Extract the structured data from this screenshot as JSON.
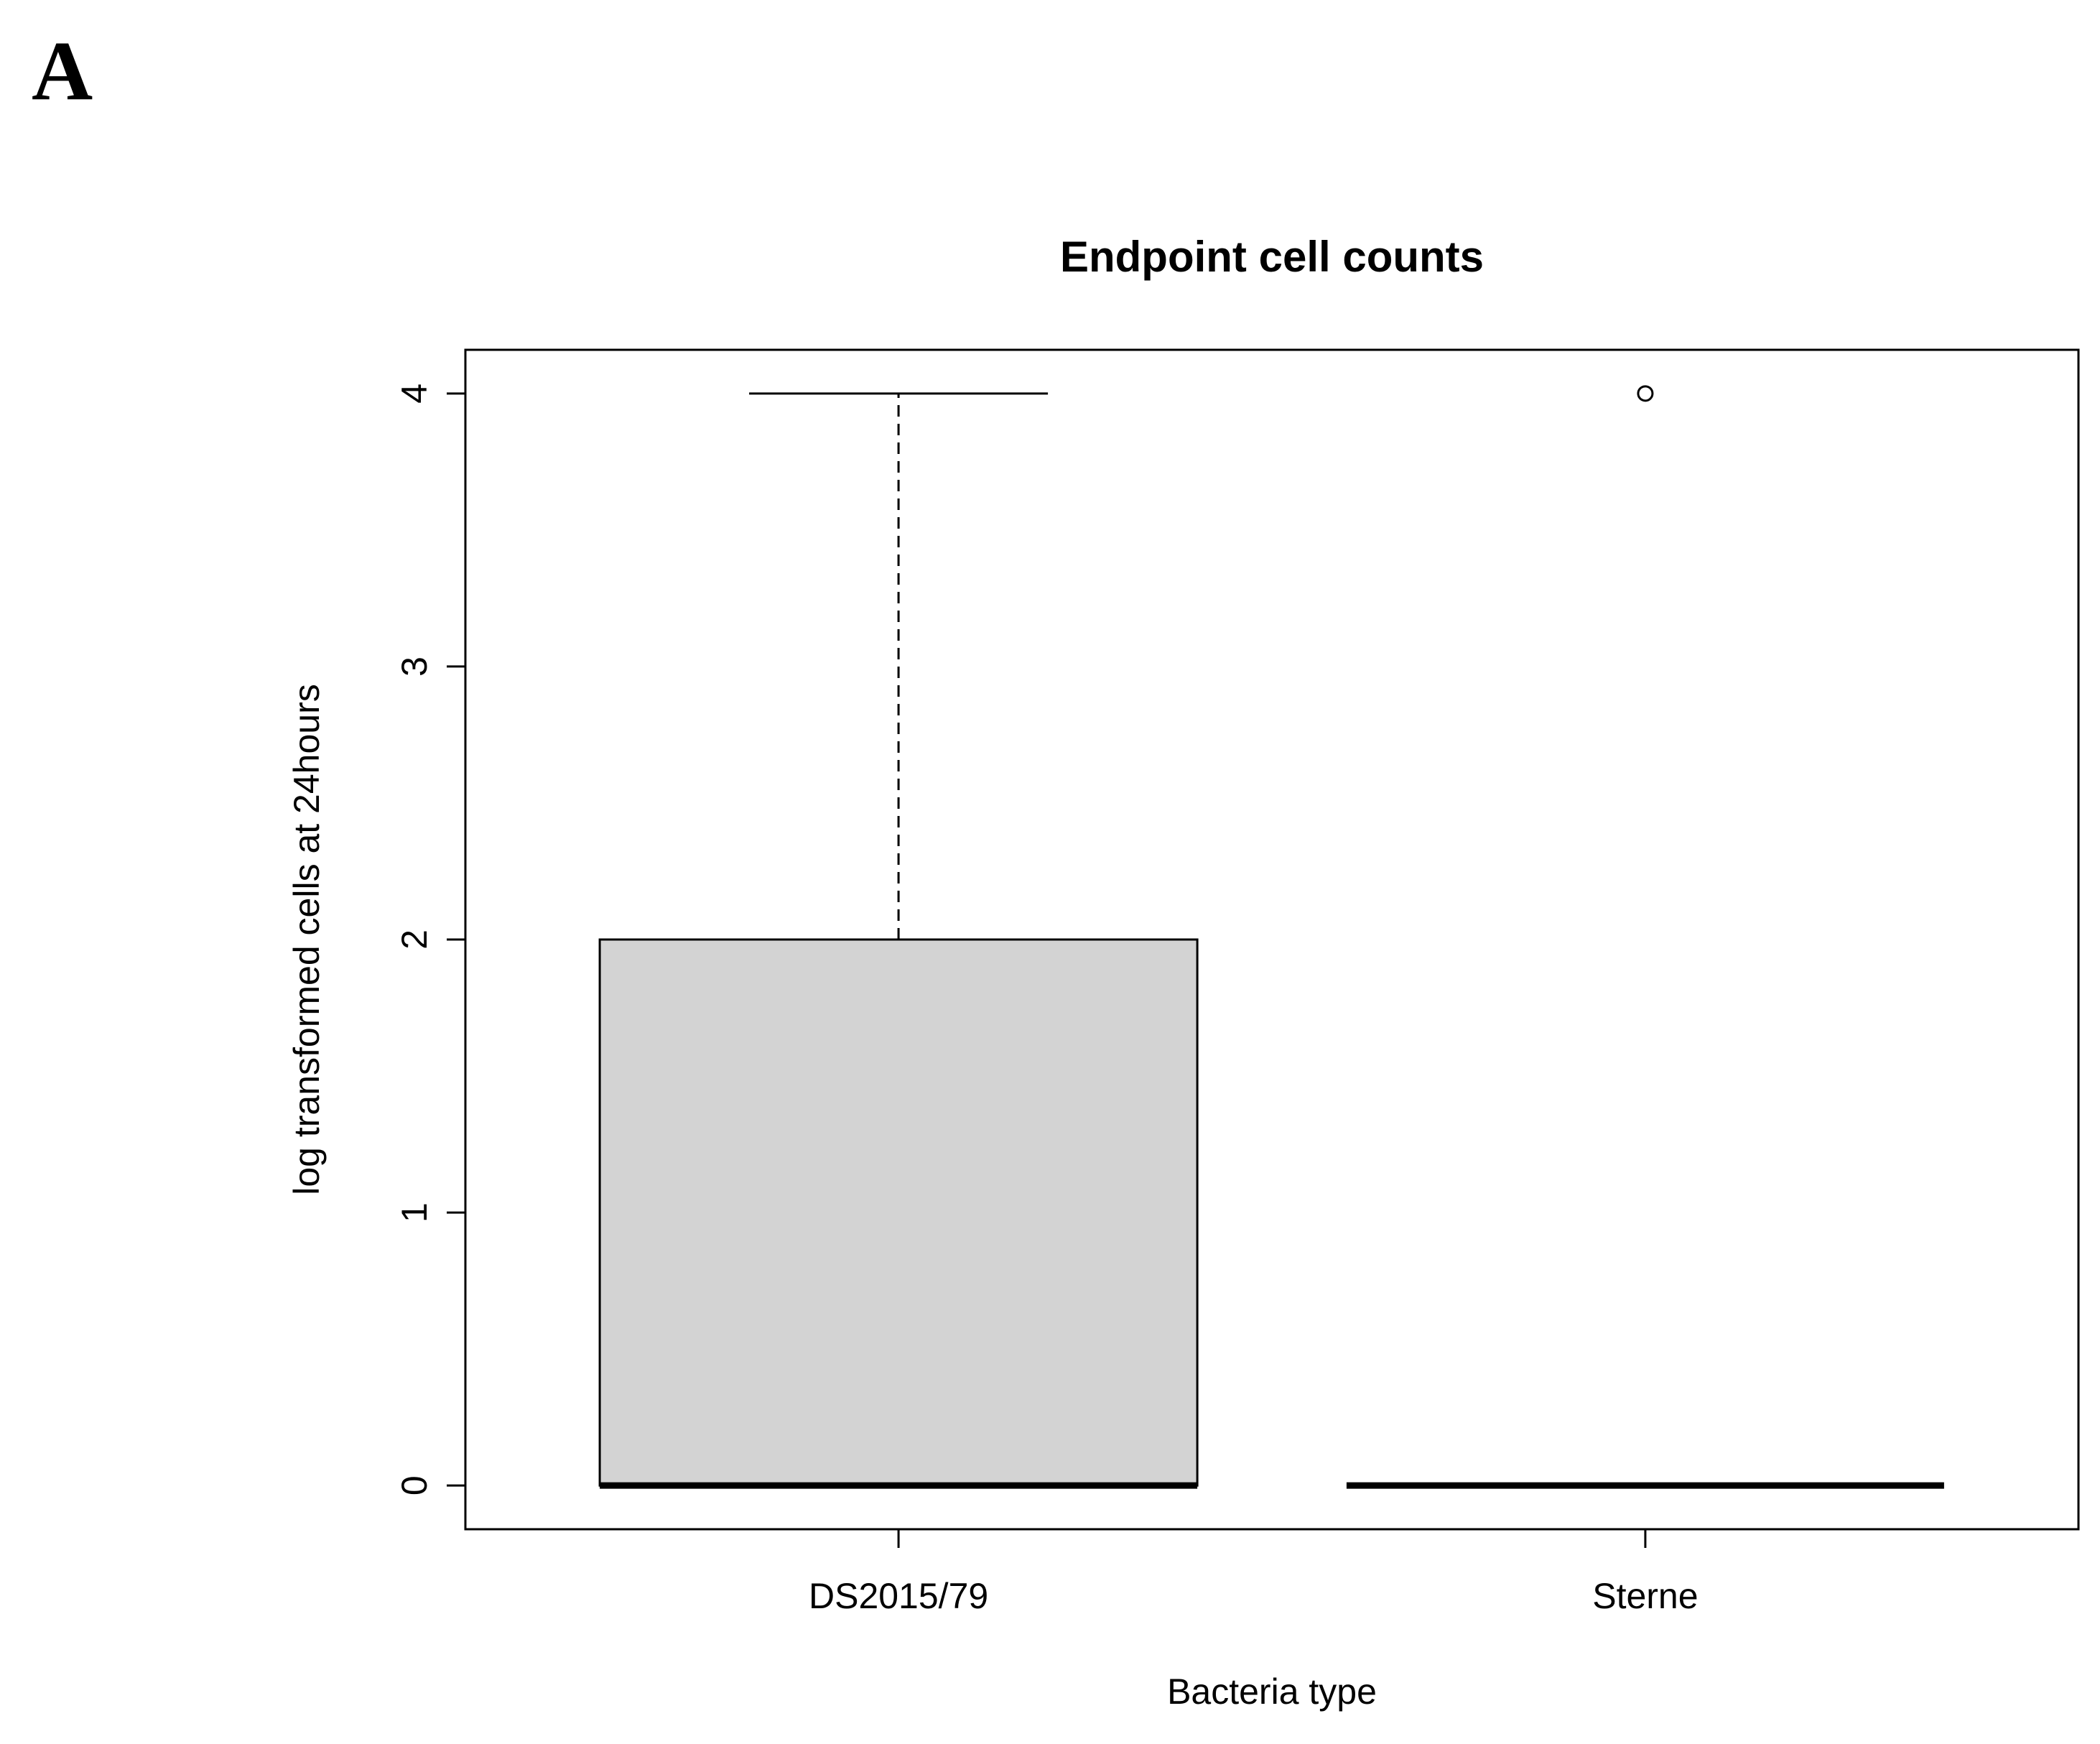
{
  "panel_label": "A",
  "chart_data": {
    "type": "boxplot",
    "title": "Endpoint cell counts",
    "xlabel": "Bacteria type",
    "ylabel": "log transformed cells at 24hours",
    "categories": [
      "DS2015/79",
      "Sterne"
    ],
    "yticks": [
      0,
      1,
      2,
      3,
      4
    ],
    "ytick_labels": [
      "0",
      "1",
      "2",
      "3",
      "4"
    ],
    "ylim": [
      -0.16,
      4.16
    ],
    "grid": false,
    "legend": "none",
    "boxes": [
      {
        "category": "DS2015/79",
        "min": 0,
        "q1": 0,
        "median": 0,
        "q3": 2,
        "max": 4,
        "outliers": []
      },
      {
        "category": "Sterne",
        "min": 0,
        "q1": 0,
        "median": 0,
        "q3": 0,
        "max": 0,
        "outliers": [
          4
        ]
      }
    ],
    "colors": {
      "box_fill": "#d3d3d3",
      "line": "#000000"
    }
  }
}
